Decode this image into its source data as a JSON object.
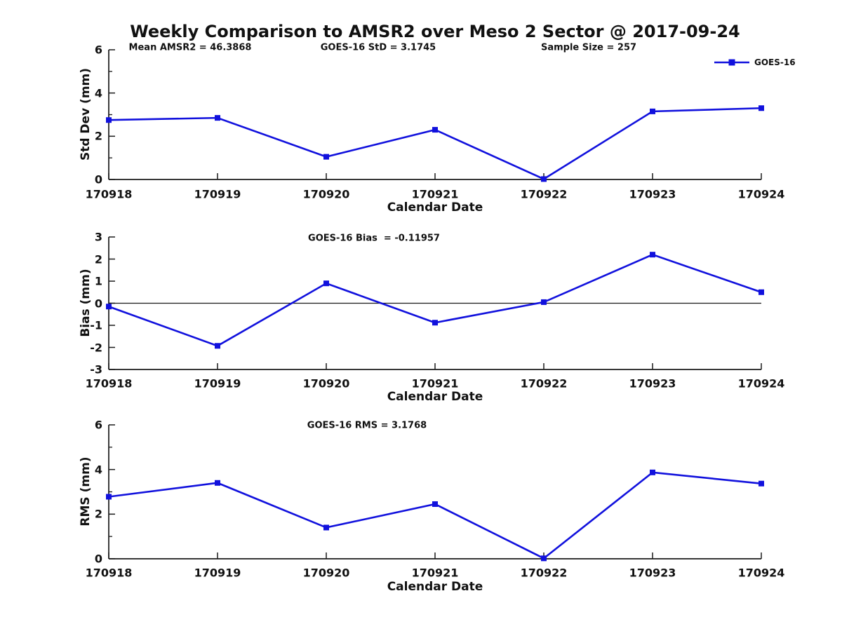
{
  "title": "Weekly Comparison to AMSR2 over Meso 2 Sector @ 2017-09-24",
  "header_annotations": {
    "mean_amsr2": "Mean AMSR2 = 46.3868",
    "goes16_std": "GOES-16 StD = 3.1745",
    "sample_size": "Sample Size = 257"
  },
  "legend": {
    "label": "GOES-16"
  },
  "colors": {
    "line": "#1111dd",
    "axis": "#1a1a1a",
    "zero_line": "#1a1a1a",
    "text": "#111111"
  },
  "chart_data": [
    {
      "type": "line",
      "name": "std-dev-weekly",
      "ylabel": "Std Dev (mm)",
      "xlabel": "Calendar Date",
      "annotation": "",
      "categories": [
        "170918",
        "170919",
        "170920",
        "170921",
        "170922",
        "170923",
        "170924"
      ],
      "series": [
        {
          "name": "GOES-16",
          "values": [
            2.75,
            2.85,
            1.05,
            2.3,
            0.02,
            3.15,
            3.3
          ]
        }
      ],
      "ylim": [
        0,
        6
      ],
      "yticks": [
        0,
        2,
        4,
        6
      ],
      "yminorticks": [
        1,
        3,
        5
      ],
      "zero_line": false,
      "grid": false,
      "legend_position": "top-right-outside"
    },
    {
      "type": "line",
      "name": "bias-weekly",
      "ylabel": "Bias (mm)",
      "xlabel": "Calendar Date",
      "annotation": "GOES-16 Bias  = -0.11957",
      "categories": [
        "170918",
        "170919",
        "170920",
        "170921",
        "170922",
        "170923",
        "170924"
      ],
      "series": [
        {
          "name": "GOES-16",
          "values": [
            -0.15,
            -1.93,
            0.9,
            -0.88,
            0.05,
            2.2,
            0.5
          ]
        }
      ],
      "ylim": [
        -3,
        3
      ],
      "yticks": [
        -3,
        -2,
        -1,
        0,
        1,
        2,
        3
      ],
      "yminorticks": [],
      "zero_line": true,
      "grid": false,
      "legend_position": "none"
    },
    {
      "type": "line",
      "name": "rms-weekly",
      "ylabel": "RMS (mm)",
      "xlabel": "Calendar Date",
      "annotation": "GOES-16 RMS = 3.1768",
      "categories": [
        "170918",
        "170919",
        "170920",
        "170921",
        "170922",
        "170923",
        "170924"
      ],
      "series": [
        {
          "name": "GOES-16",
          "values": [
            2.78,
            3.4,
            1.4,
            2.45,
            0.02,
            3.87,
            3.37
          ]
        }
      ],
      "ylim": [
        0,
        6
      ],
      "yticks": [
        0,
        2,
        4,
        6
      ],
      "yminorticks": [
        1,
        3,
        5
      ],
      "zero_line": false,
      "grid": false,
      "legend_position": "none"
    }
  ]
}
